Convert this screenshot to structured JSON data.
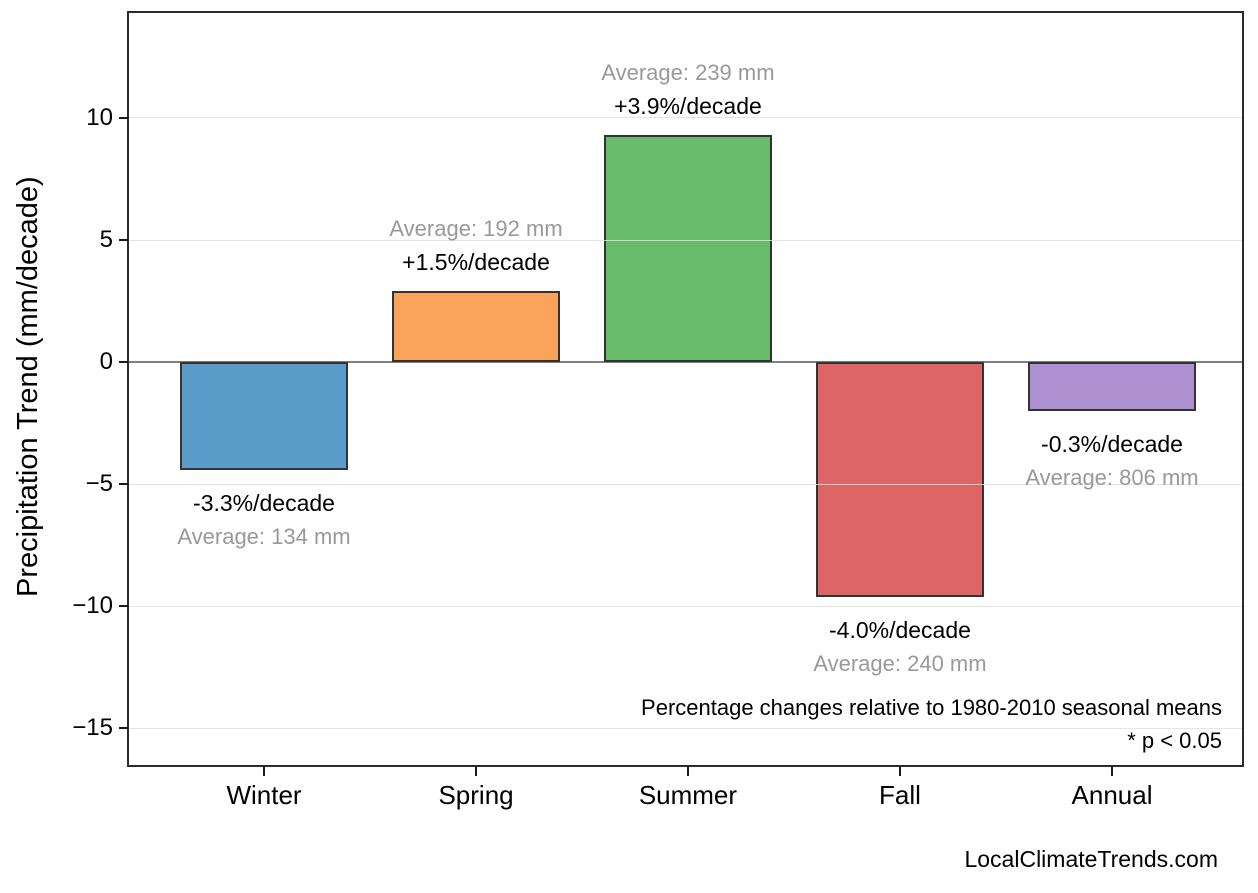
{
  "chart_data": {
    "type": "bar",
    "title": "",
    "ylabel": "Precipitation Trend (mm/decade)",
    "xlabel": "",
    "categories": [
      "Winter",
      "Spring",
      "Summer",
      "Fall",
      "Annual"
    ],
    "values": [
      -4.4,
      2.9,
      9.3,
      -9.6,
      -2.0
    ],
    "percent_per_decade": [
      -3.3,
      1.5,
      3.9,
      -4.0,
      -0.3
    ],
    "averages_mm": [
      134,
      192,
      239,
      240,
      806
    ],
    "percent_labels": [
      "-3.3%/decade",
      "+1.5%/decade",
      "+3.9%/decade",
      "-4.0%/decade",
      "-0.3%/decade"
    ],
    "average_labels": [
      "Average: 134 mm",
      "Average: 192 mm",
      "Average: 239 mm",
      "Average: 240 mm",
      "Average: 806 mm"
    ],
    "bar_colors": [
      "#5B9BC9",
      "#FAA35B",
      "#69BC6C",
      "#DD6565",
      "#AE90D1"
    ],
    "bar_edge_color": "#333333",
    "yticks": [
      {
        "value": 10,
        "label": "10"
      },
      {
        "value": 5,
        "label": "5"
      },
      {
        "value": 0,
        "label": "0"
      },
      {
        "value": -5,
        "label": "−5"
      },
      {
        "value": -10,
        "label": "−10"
      },
      {
        "value": -15,
        "label": "−15"
      }
    ],
    "ylim": [
      -16.5,
      14.3
    ],
    "grid": true,
    "legend": "none",
    "zero_line_color": "#7f7f7f",
    "grid_color": "#e1e1e1",
    "muted_text_color": "#999999",
    "annotations": [
      "Percentage changes relative to 1980-2010 seasonal means",
      "* p < 0.05"
    ],
    "watermark": "LocalClimateTrends.com"
  }
}
